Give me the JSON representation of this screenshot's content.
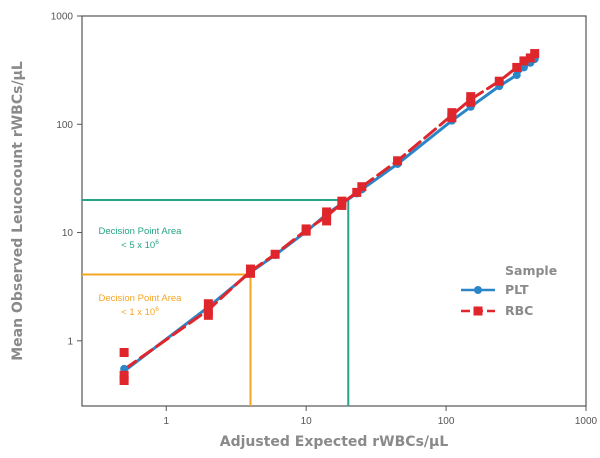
{
  "chart_data": {
    "type": "line",
    "xlabel": "Adjusted Expected rWBCs/µL",
    "ylabel": "Mean Observed Leucocount rWBCs/µL",
    "xscale": "log",
    "yscale": "log",
    "xlim": [
      0.25,
      1000
    ],
    "ylim": [
      0.25,
      1000
    ],
    "x_ticks": [
      1,
      10,
      100,
      1000
    ],
    "y_ticks": [
      1,
      10,
      100,
      1000
    ],
    "x_tick_labels": [
      "1",
      "10",
      "100",
      "1000"
    ],
    "y_tick_labels": [
      "1",
      "10",
      "100",
      "1000"
    ],
    "grid": false,
    "legend": {
      "title": "Sample",
      "placement": "right",
      "entries": [
        "PLT",
        "RBC"
      ]
    },
    "series": [
      {
        "name": "PLT",
        "color": "#2a86c8",
        "marker": "circle",
        "line_style": "solid",
        "x": [
          0.5,
          0.5,
          2,
          2,
          4,
          6,
          10,
          14,
          14,
          18,
          23,
          25,
          45,
          110,
          150,
          240,
          320,
          360,
          400,
          430
        ],
        "y": [
          0.5,
          0.55,
          2.0,
          2.1,
          4.3,
          6.2,
          10.2,
          14.5,
          15,
          18.5,
          23,
          25,
          43,
          108,
          145,
          225,
          285,
          335,
          370,
          400
        ]
      },
      {
        "name": "RBC",
        "color": "#e0262d",
        "marker": "square",
        "line_style": "dashed",
        "x": [
          0.5,
          0.5,
          0.5,
          2,
          2,
          2,
          4,
          4,
          6,
          10,
          10,
          14,
          14,
          14,
          18,
          18,
          23,
          25,
          45,
          110,
          110,
          150,
          150,
          240,
          320,
          360,
          400,
          430
        ],
        "y": [
          0.78,
          0.48,
          0.43,
          2.2,
          1.9,
          1.72,
          4.6,
          4.2,
          6.3,
          10.8,
          10.3,
          15.5,
          14.2,
          12.8,
          19.5,
          17.8,
          23.5,
          26.5,
          46,
          128,
          115,
          180,
          160,
          250,
          335,
          385,
          410,
          450
        ]
      }
    ],
    "annotations": [
      {
        "label_line1": "Decision Point Area",
        "label_line2": "< 5 x 10",
        "superscript": "6",
        "color": "#27a387",
        "region_x_max": 20,
        "region_y_max": 20
      },
      {
        "label_line1": "Decision Point Area",
        "label_line2": "< 1 x 10",
        "superscript": "6",
        "color": "#f4a623",
        "region_x_max": 4,
        "region_y_max": 4.1
      }
    ]
  }
}
